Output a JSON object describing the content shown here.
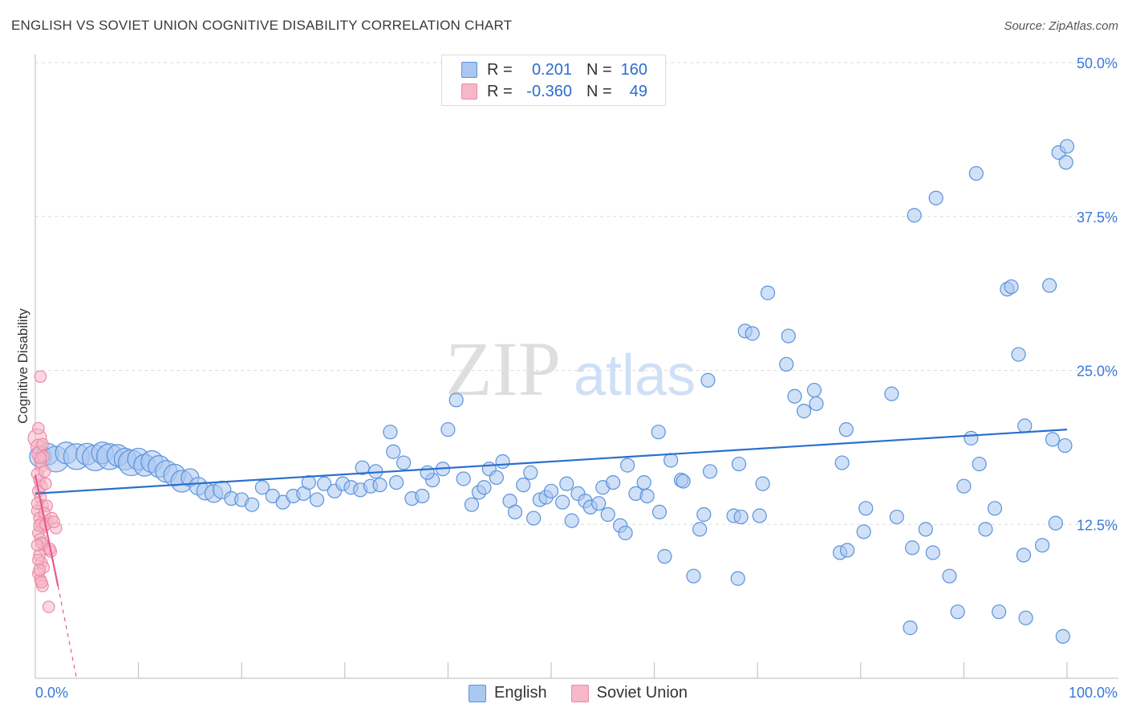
{
  "title": "ENGLISH VS SOVIET UNION COGNITIVE DISABILITY CORRELATION CHART",
  "source": "Source: ZipAtlas.com",
  "watermark": {
    "zip": "ZIP",
    "atlas": "atlas"
  },
  "legend": {
    "english": {
      "r_label": "R =",
      "r_value": "0.201",
      "n_label": "N =",
      "n_value": "160"
    },
    "soviet": {
      "r_label": "R =",
      "r_value": "-0.360",
      "n_label": "N =",
      "n_value": "49"
    }
  },
  "bottom_legend": {
    "english": "English",
    "soviet": "Soviet Union"
  },
  "colors": {
    "english_fill": "#a9c7f0",
    "english_stroke": "#5b93dc",
    "english_line": "#2a6fce",
    "soviet_fill": "#f6b7c9",
    "soviet_stroke": "#ec8aa8",
    "soviet_line": "#e8588a",
    "axis_text": "#3b78d8",
    "grid": "#dddddd"
  },
  "chart_data": {
    "type": "scatter",
    "title": "ENGLISH VS SOVIET UNION COGNITIVE DISABILITY CORRELATION CHART",
    "xlabel": "",
    "ylabel": "Cognitive Disability",
    "xlim": [
      0,
      100
    ],
    "ylim": [
      0,
      50
    ],
    "x_tick_labels": [
      "0.0%",
      "100.0%"
    ],
    "y_ticks": [
      12.5,
      25.0,
      37.5,
      50.0
    ],
    "y_tick_labels": [
      "12.5%",
      "25.0%",
      "37.5%",
      "50.0%"
    ],
    "grid": true,
    "series": [
      {
        "name": "English",
        "trendline": {
          "x": [
            0,
            100
          ],
          "y": [
            15.0,
            20.2
          ]
        },
        "points": [
          {
            "x": 0.5,
            "y": 18.0,
            "s": 3
          },
          {
            "x": 1.2,
            "y": 18.2,
            "s": 3
          },
          {
            "x": 2.0,
            "y": 17.8,
            "s": 4
          },
          {
            "x": 3.0,
            "y": 18.3,
            "s": 3
          },
          {
            "x": 4.0,
            "y": 18.0,
            "s": 4
          },
          {
            "x": 5.0,
            "y": 18.2,
            "s": 3
          },
          {
            "x": 5.8,
            "y": 17.9,
            "s": 4
          },
          {
            "x": 6.5,
            "y": 18.3,
            "s": 3
          },
          {
            "x": 7.2,
            "y": 18.0,
            "s": 4
          },
          {
            "x": 8.0,
            "y": 18.1,
            "s": 3
          },
          {
            "x": 8.7,
            "y": 17.8,
            "s": 3
          },
          {
            "x": 9.3,
            "y": 17.5,
            "s": 4
          },
          {
            "x": 10.0,
            "y": 17.8,
            "s": 3
          },
          {
            "x": 10.6,
            "y": 17.3,
            "s": 3
          },
          {
            "x": 11.3,
            "y": 17.6,
            "s": 3
          },
          {
            "x": 12.0,
            "y": 17.2,
            "s": 3
          },
          {
            "x": 12.7,
            "y": 16.8,
            "s": 3
          },
          {
            "x": 13.5,
            "y": 16.5,
            "s": 3
          },
          {
            "x": 14.2,
            "y": 16.0,
            "s": 3
          },
          {
            "x": 15.0,
            "y": 16.3,
            "s": 2
          },
          {
            "x": 15.8,
            "y": 15.6,
            "s": 2
          },
          {
            "x": 16.5,
            "y": 15.2,
            "s": 2
          },
          {
            "x": 17.3,
            "y": 15.0,
            "s": 2
          },
          {
            "x": 18.1,
            "y": 15.3,
            "s": 2
          },
          {
            "x": 19.0,
            "y": 14.6,
            "s": 1
          },
          {
            "x": 20.0,
            "y": 14.5,
            "s": 1
          },
          {
            "x": 21.0,
            "y": 14.1,
            "s": 1
          },
          {
            "x": 22.0,
            "y": 15.5,
            "s": 1
          },
          {
            "x": 23.0,
            "y": 14.8,
            "s": 1
          },
          {
            "x": 24.0,
            "y": 14.3,
            "s": 1
          },
          {
            "x": 25.0,
            "y": 14.8,
            "s": 1
          },
          {
            "x": 26.0,
            "y": 15.0,
            "s": 1
          },
          {
            "x": 26.5,
            "y": 15.9,
            "s": 1
          },
          {
            "x": 27.3,
            "y": 14.5,
            "s": 1
          },
          {
            "x": 28.0,
            "y": 15.8,
            "s": 1
          },
          {
            "x": 29.0,
            "y": 15.2,
            "s": 1
          },
          {
            "x": 29.8,
            "y": 15.8,
            "s": 1
          },
          {
            "x": 30.6,
            "y": 15.5,
            "s": 1
          },
          {
            "x": 31.5,
            "y": 15.3,
            "s": 1
          },
          {
            "x": 32.5,
            "y": 15.6,
            "s": 1
          },
          {
            "x": 33.4,
            "y": 15.7,
            "s": 1
          },
          {
            "x": 31.7,
            "y": 17.1,
            "s": 1
          },
          {
            "x": 33.0,
            "y": 16.8,
            "s": 1
          },
          {
            "x": 34.4,
            "y": 20.0,
            "s": 1
          },
          {
            "x": 34.7,
            "y": 18.4,
            "s": 1
          },
          {
            "x": 35.7,
            "y": 17.5,
            "s": 1
          },
          {
            "x": 35.0,
            "y": 15.9,
            "s": 1
          },
          {
            "x": 36.5,
            "y": 14.6,
            "s": 1
          },
          {
            "x": 37.5,
            "y": 14.8,
            "s": 1
          },
          {
            "x": 38.5,
            "y": 16.1,
            "s": 1
          },
          {
            "x": 38.0,
            "y": 16.7,
            "s": 1
          },
          {
            "x": 39.5,
            "y": 17.0,
            "s": 1
          },
          {
            "x": 40.0,
            "y": 20.2,
            "s": 1
          },
          {
            "x": 40.8,
            "y": 22.6,
            "s": 1
          },
          {
            "x": 41.5,
            "y": 16.2,
            "s": 1
          },
          {
            "x": 42.3,
            "y": 14.1,
            "s": 1
          },
          {
            "x": 43.0,
            "y": 15.1,
            "s": 1
          },
          {
            "x": 43.5,
            "y": 15.5,
            "s": 1
          },
          {
            "x": 44.0,
            "y": 17.0,
            "s": 1
          },
          {
            "x": 44.7,
            "y": 16.3,
            "s": 1
          },
          {
            "x": 45.3,
            "y": 17.6,
            "s": 1
          },
          {
            "x": 46.0,
            "y": 14.4,
            "s": 1
          },
          {
            "x": 46.5,
            "y": 13.5,
            "s": 1
          },
          {
            "x": 47.3,
            "y": 15.7,
            "s": 1
          },
          {
            "x": 48.0,
            "y": 16.7,
            "s": 1
          },
          {
            "x": 48.3,
            "y": 13.0,
            "s": 1
          },
          {
            "x": 48.9,
            "y": 14.5,
            "s": 1
          },
          {
            "x": 49.5,
            "y": 14.7,
            "s": 1
          },
          {
            "x": 50.0,
            "y": 15.2,
            "s": 1
          },
          {
            "x": 51.1,
            "y": 14.3,
            "s": 1
          },
          {
            "x": 51.5,
            "y": 15.8,
            "s": 1
          },
          {
            "x": 52.0,
            "y": 12.8,
            "s": 1
          },
          {
            "x": 52.6,
            "y": 15.0,
            "s": 1
          },
          {
            "x": 53.3,
            "y": 14.4,
            "s": 1
          },
          {
            "x": 53.8,
            "y": 13.9,
            "s": 1
          },
          {
            "x": 54.6,
            "y": 14.2,
            "s": 1
          },
          {
            "x": 55.0,
            "y": 15.5,
            "s": 1
          },
          {
            "x": 55.5,
            "y": 13.3,
            "s": 1
          },
          {
            "x": 56.0,
            "y": 15.9,
            "s": 1
          },
          {
            "x": 56.7,
            "y": 12.4,
            "s": 1
          },
          {
            "x": 57.2,
            "y": 11.8,
            "s": 1
          },
          {
            "x": 57.4,
            "y": 17.3,
            "s": 1
          },
          {
            "x": 58.2,
            "y": 15.0,
            "s": 1
          },
          {
            "x": 59.0,
            "y": 15.9,
            "s": 1
          },
          {
            "x": 59.3,
            "y": 14.8,
            "s": 1
          },
          {
            "x": 60.5,
            "y": 13.5,
            "s": 1
          },
          {
            "x": 60.4,
            "y": 20.0,
            "s": 1
          },
          {
            "x": 61.6,
            "y": 17.7,
            "s": 1
          },
          {
            "x": 62.6,
            "y": 16.1,
            "s": 1
          },
          {
            "x": 62.8,
            "y": 16.0,
            "s": 1
          },
          {
            "x": 63.8,
            "y": 8.3,
            "s": 1
          },
          {
            "x": 64.8,
            "y": 13.3,
            "s": 1
          },
          {
            "x": 64.4,
            "y": 12.1,
            "s": 1
          },
          {
            "x": 65.4,
            "y": 16.8,
            "s": 1
          },
          {
            "x": 61.0,
            "y": 9.9,
            "s": 1
          },
          {
            "x": 68.2,
            "y": 17.4,
            "s": 1
          },
          {
            "x": 68.1,
            "y": 8.1,
            "s": 1
          },
          {
            "x": 67.7,
            "y": 13.2,
            "s": 1
          },
          {
            "x": 68.4,
            "y": 13.1,
            "s": 1
          },
          {
            "x": 70.2,
            "y": 13.2,
            "s": 1
          },
          {
            "x": 70.5,
            "y": 15.8,
            "s": 1
          },
          {
            "x": 65.2,
            "y": 24.2,
            "s": 1
          },
          {
            "x": 68.8,
            "y": 28.2,
            "s": 1
          },
          {
            "x": 69.5,
            "y": 28.0,
            "s": 1
          },
          {
            "x": 71.0,
            "y": 31.3,
            "s": 1
          },
          {
            "x": 72.8,
            "y": 25.5,
            "s": 1
          },
          {
            "x": 73.0,
            "y": 27.8,
            "s": 1
          },
          {
            "x": 75.5,
            "y": 23.4,
            "s": 1
          },
          {
            "x": 75.7,
            "y": 22.3,
            "s": 1
          },
          {
            "x": 73.6,
            "y": 22.9,
            "s": 1
          },
          {
            "x": 74.5,
            "y": 21.7,
            "s": 1
          },
          {
            "x": 78.6,
            "y": 20.2,
            "s": 1
          },
          {
            "x": 78.2,
            "y": 17.5,
            "s": 1
          },
          {
            "x": 78.0,
            "y": 10.2,
            "s": 1
          },
          {
            "x": 78.7,
            "y": 10.4,
            "s": 1
          },
          {
            "x": 80.3,
            "y": 11.9,
            "s": 1
          },
          {
            "x": 80.5,
            "y": 13.8,
            "s": 1
          },
          {
            "x": 83.0,
            "y": 23.1,
            "s": 1
          },
          {
            "x": 83.5,
            "y": 13.1,
            "s": 1
          },
          {
            "x": 85.0,
            "y": 10.6,
            "s": 1
          },
          {
            "x": 84.8,
            "y": 4.1,
            "s": 1
          },
          {
            "x": 86.3,
            "y": 12.1,
            "s": 1
          },
          {
            "x": 87.0,
            "y": 10.2,
            "s": 1
          },
          {
            "x": 87.3,
            "y": 39.0,
            "s": 1
          },
          {
            "x": 85.2,
            "y": 37.6,
            "s": 1
          },
          {
            "x": 88.6,
            "y": 8.3,
            "s": 1
          },
          {
            "x": 89.4,
            "y": 5.4,
            "s": 1
          },
          {
            "x": 90.0,
            "y": 15.6,
            "s": 1
          },
          {
            "x": 90.7,
            "y": 19.5,
            "s": 1
          },
          {
            "x": 91.2,
            "y": 41.0,
            "s": 1
          },
          {
            "x": 91.5,
            "y": 17.4,
            "s": 1
          },
          {
            "x": 92.1,
            "y": 12.1,
            "s": 1
          },
          {
            "x": 93.0,
            "y": 13.8,
            "s": 1
          },
          {
            "x": 93.4,
            "y": 5.4,
            "s": 1
          },
          {
            "x": 94.2,
            "y": 31.6,
            "s": 1
          },
          {
            "x": 94.6,
            "y": 31.8,
            "s": 1
          },
          {
            "x": 95.3,
            "y": 26.3,
            "s": 1
          },
          {
            "x": 95.9,
            "y": 20.5,
            "s": 1
          },
          {
            "x": 95.8,
            "y": 10.0,
            "s": 1
          },
          {
            "x": 96.0,
            "y": 4.9,
            "s": 1
          },
          {
            "x": 97.6,
            "y": 10.8,
            "s": 1
          },
          {
            "x": 98.3,
            "y": 31.9,
            "s": 1
          },
          {
            "x": 98.6,
            "y": 19.4,
            "s": 1
          },
          {
            "x": 98.9,
            "y": 12.6,
            "s": 1
          },
          {
            "x": 99.2,
            "y": 42.7,
            "s": 1
          },
          {
            "x": 99.6,
            "y": 3.4,
            "s": 1
          },
          {
            "x": 99.8,
            "y": 18.9,
            "s": 1
          },
          {
            "x": 99.9,
            "y": 41.9,
            "s": 1
          },
          {
            "x": 100.0,
            "y": 43.2,
            "s": 1
          }
        ]
      },
      {
        "name": "Soviet Union",
        "trendline": {
          "x": [
            0,
            2.2
          ],
          "y": [
            16.5,
            7.5
          ]
        },
        "trendline_dashed": {
          "x": [
            2.2,
            4.0
          ],
          "y": [
            7.5,
            0
          ]
        },
        "points": [
          {
            "x": 0.2,
            "y": 19.5,
            "s": 3
          },
          {
            "x": 0.3,
            "y": 18.8,
            "s": 2
          },
          {
            "x": 0.4,
            "y": 18.2,
            "s": 2
          },
          {
            "x": 0.5,
            "y": 17.6,
            "s": 1
          },
          {
            "x": 0.6,
            "y": 17.2,
            "s": 1
          },
          {
            "x": 0.3,
            "y": 20.3,
            "s": 1
          },
          {
            "x": 0.5,
            "y": 24.5,
            "s": 1
          },
          {
            "x": 0.2,
            "y": 16.6,
            "s": 1
          },
          {
            "x": 0.4,
            "y": 16.1,
            "s": 1
          },
          {
            "x": 0.6,
            "y": 15.6,
            "s": 1
          },
          {
            "x": 0.3,
            "y": 15.2,
            "s": 1
          },
          {
            "x": 0.5,
            "y": 14.7,
            "s": 1
          },
          {
            "x": 0.7,
            "y": 14.0,
            "s": 1
          },
          {
            "x": 0.2,
            "y": 13.6,
            "s": 1
          },
          {
            "x": 0.4,
            "y": 13.0,
            "s": 1
          },
          {
            "x": 0.6,
            "y": 12.6,
            "s": 1
          },
          {
            "x": 0.8,
            "y": 12.3,
            "s": 1
          },
          {
            "x": 0.3,
            "y": 11.8,
            "s": 1
          },
          {
            "x": 0.5,
            "y": 11.3,
            "s": 1
          },
          {
            "x": 0.7,
            "y": 10.9,
            "s": 1
          },
          {
            "x": 0.9,
            "y": 10.5,
            "s": 1
          },
          {
            "x": 0.4,
            "y": 10.0,
            "s": 1
          },
          {
            "x": 0.6,
            "y": 9.4,
            "s": 1
          },
          {
            "x": 0.8,
            "y": 9.0,
            "s": 1
          },
          {
            "x": 0.3,
            "y": 8.5,
            "s": 1
          },
          {
            "x": 0.5,
            "y": 8.0,
            "s": 1
          },
          {
            "x": 0.7,
            "y": 7.5,
            "s": 1
          },
          {
            "x": 1.2,
            "y": 12.8,
            "s": 1
          },
          {
            "x": 1.5,
            "y": 10.3,
            "s": 1
          },
          {
            "x": 2.0,
            "y": 12.2,
            "s": 1
          },
          {
            "x": 1.3,
            "y": 5.8,
            "s": 1
          },
          {
            "x": 1.1,
            "y": 14.0,
            "s": 1
          },
          {
            "x": 0.9,
            "y": 16.8,
            "s": 1
          },
          {
            "x": 0.8,
            "y": 18.0,
            "s": 1
          },
          {
            "x": 1.0,
            "y": 15.8,
            "s": 1
          },
          {
            "x": 0.2,
            "y": 14.2,
            "s": 1
          },
          {
            "x": 0.4,
            "y": 12.4,
            "s": 1
          },
          {
            "x": 0.6,
            "y": 11.0,
            "s": 1
          },
          {
            "x": 0.3,
            "y": 9.6,
            "s": 1
          },
          {
            "x": 0.5,
            "y": 17.9,
            "s": 1
          },
          {
            "x": 0.7,
            "y": 19.0,
            "s": 1
          },
          {
            "x": 0.9,
            "y": 13.4,
            "s": 1
          },
          {
            "x": 1.0,
            "y": 12.5,
            "s": 1
          },
          {
            "x": 0.2,
            "y": 10.8,
            "s": 1
          },
          {
            "x": 0.4,
            "y": 8.8,
            "s": 1
          },
          {
            "x": 0.6,
            "y": 7.8,
            "s": 1
          },
          {
            "x": 1.6,
            "y": 13.0,
            "s": 1
          },
          {
            "x": 1.4,
            "y": 10.5,
            "s": 1
          },
          {
            "x": 1.8,
            "y": 12.7,
            "s": 1
          }
        ]
      }
    ]
  }
}
